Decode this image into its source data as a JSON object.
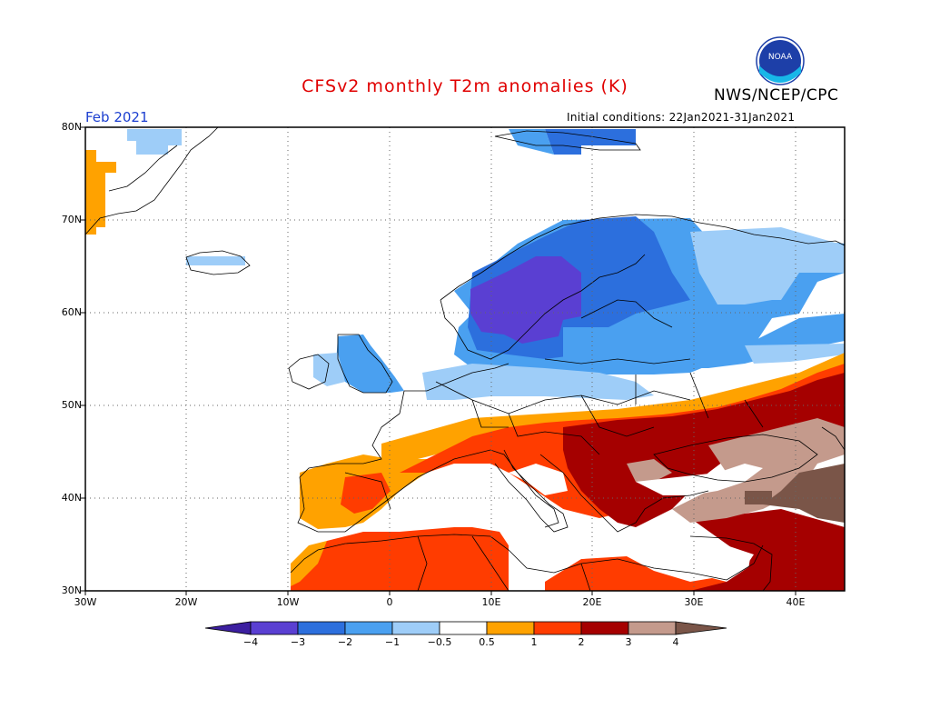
{
  "title": "CFSv2 monthly T2m anomalies (K)",
  "agency": "NWS/NCEP/CPC",
  "logo_text": "NOAA",
  "valid_month": "Feb 2021",
  "initial_conditions": "Initial conditions: 22Jan2021-31Jan2021",
  "lat_labels": [
    "80N",
    "70N",
    "60N",
    "50N",
    "40N",
    "30N"
  ],
  "lon_labels": [
    "30W",
    "20W",
    "10W",
    "0",
    "10E",
    "20E",
    "30E",
    "40E"
  ],
  "colorbar": {
    "labels": [
      "−4",
      "−3",
      "−2",
      "−1",
      "−0.5",
      "0.5",
      "1",
      "2",
      "3",
      "4"
    ],
    "colors": [
      "#3c1fa0",
      "#5a3fd2",
      "#2c6fdd",
      "#4aa0f0",
      "#9ecdf8",
      "#ffffff",
      "#ffa200",
      "#ff3c00",
      "#a50000",
      "#c49a8c",
      "#7a5548"
    ]
  },
  "colors": {
    "land_outline": "#000000",
    "title": "#e00000",
    "month_label": "#1c3fd0",
    "frame": "#000000"
  }
}
